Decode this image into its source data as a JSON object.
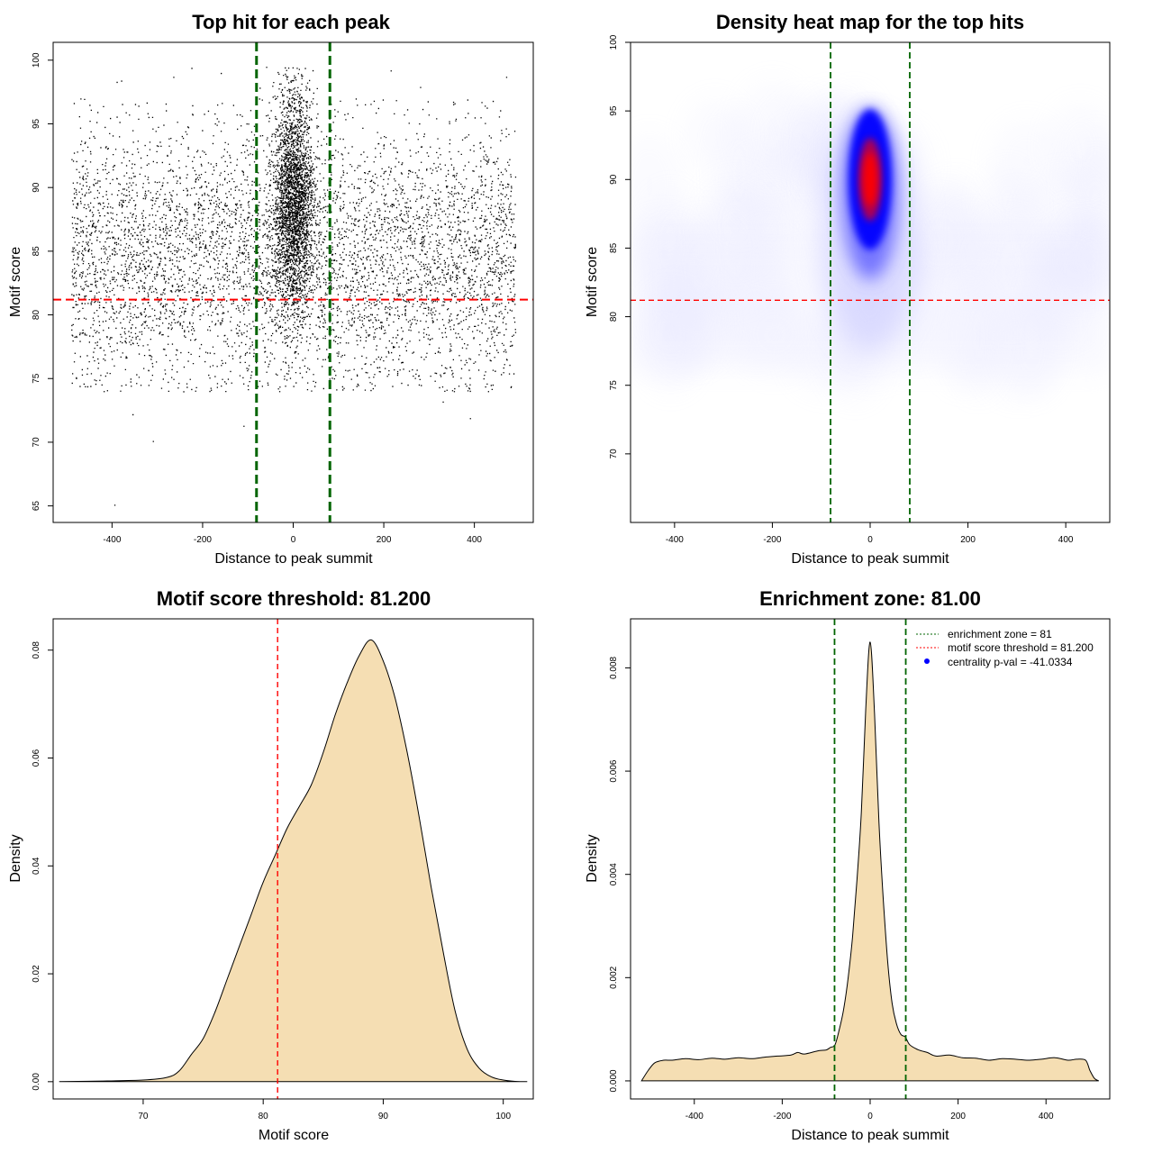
{
  "chart_data": [
    {
      "id": "scatter",
      "type": "scatter",
      "title": "Top hit for each peak",
      "xlabel": "Distance to peak summit",
      "ylabel": "Motif score",
      "xlim": [
        -530,
        530
      ],
      "ylim": [
        63.7,
        101.4
      ],
      "xticks": [
        -400,
        -200,
        0,
        200,
        400
      ],
      "yticks": [
        65,
        70,
        75,
        80,
        85,
        90,
        95,
        100
      ],
      "hline": 81.2,
      "vlines": [
        -81,
        81
      ],
      "point_model": {
        "background": {
          "n": 5600,
          "x_range": [
            -490,
            490
          ],
          "mean": 84.5,
          "sd": 5.0
        },
        "central": {
          "n": 7200,
          "x_mean": 0,
          "x_sd": 22,
          "x_range": [
            -81,
            81
          ],
          "y_mean": 89,
          "y_sd": 4.2
        },
        "outliers": [
          [
            -470,
            97.0
          ],
          [
            -450,
            96.5
          ],
          [
            -420,
            96.4
          ],
          [
            -390,
            98.3
          ],
          [
            -380,
            98.4
          ],
          [
            -225,
            99.4
          ],
          [
            -265,
            98.7
          ],
          [
            -110,
            71.3
          ],
          [
            -310,
            70.1
          ],
          [
            -355,
            72.2
          ],
          [
            -395,
            65.1
          ],
          [
            160,
            99.9
          ],
          [
            215,
            99.2
          ],
          [
            390,
            71.9
          ],
          [
            330,
            73.2
          ],
          [
            470,
            98.7
          ],
          [
            -160,
            99.0
          ],
          [
            280,
            97.9
          ]
        ]
      }
    },
    {
      "id": "heatmap",
      "type": "heatmap",
      "title": "Density heat map for the top hits",
      "xlabel": "Distance to peak summit",
      "ylabel": "Motif score",
      "xlim": [
        -490,
        490
      ],
      "ylim": [
        65,
        100
      ],
      "xticks": [
        -400,
        -200,
        0,
        200,
        400
      ],
      "yticks": [
        70,
        75,
        80,
        85,
        90,
        95,
        100
      ],
      "hline": 81.2,
      "vlines": [
        -81,
        81
      ],
      "colorscale": [
        "#ffffff",
        "#0000ff",
        "#ff0000"
      ]
    },
    {
      "id": "density_score",
      "type": "area",
      "title": "Motif score threshold: 81.200",
      "xlabel": "Motif score",
      "ylabel": "Density",
      "xlim": [
        62.5,
        102.5
      ],
      "ylim": [
        -0.0032,
        0.0858
      ],
      "xticks": [
        70,
        80,
        90,
        100
      ],
      "yticks": [
        0.0,
        0.02,
        0.04,
        0.06,
        0.08
      ],
      "ytick_labels": [
        "0.00",
        "0.02",
        "0.04",
        "0.06",
        "0.08"
      ],
      "vline": 81.2,
      "x": [
        63,
        66,
        70,
        72,
        73,
        74,
        75,
        76,
        77,
        78,
        79,
        80,
        81,
        82,
        83,
        84,
        85,
        86,
        87,
        88,
        89,
        90,
        91,
        92,
        93,
        94,
        95,
        96,
        97,
        98,
        99,
        100,
        101,
        102
      ],
      "y": [
        0,
        0.0001,
        0.0003,
        0.0008,
        0.002,
        0.005,
        0.008,
        0.013,
        0.019,
        0.025,
        0.031,
        0.037,
        0.042,
        0.047,
        0.051,
        0.055,
        0.061,
        0.068,
        0.074,
        0.079,
        0.0819,
        0.078,
        0.071,
        0.061,
        0.049,
        0.036,
        0.024,
        0.013,
        0.006,
        0.0025,
        0.0009,
        0.0003,
        5e-05,
        0
      ],
      "fill": "#f5deb3"
    },
    {
      "id": "density_distance",
      "type": "area",
      "title": "Enrichment zone: 81.00",
      "xlabel": "Distance to peak summit",
      "ylabel": "Density",
      "xlim": [
        -545,
        545
      ],
      "ylim": [
        -0.00035,
        0.00895
      ],
      "xticks": [
        -400,
        -200,
        0,
        200,
        400
      ],
      "yticks": [
        0.0,
        0.002,
        0.004,
        0.006,
        0.008
      ],
      "ytick_labels": [
        "0.000",
        "0.002",
        "0.004",
        "0.006",
        "0.008"
      ],
      "vlines": [
        -81,
        81
      ],
      "x": [
        -520,
        -505,
        -490,
        -470,
        -450,
        -420,
        -390,
        -360,
        -330,
        -300,
        -270,
        -240,
        -210,
        -180,
        -165,
        -150,
        -120,
        -100,
        -90,
        -80,
        -70,
        -60,
        -50,
        -40,
        -30,
        -20,
        -10,
        0,
        10,
        20,
        30,
        40,
        50,
        60,
        70,
        80,
        90,
        110,
        130,
        150,
        180,
        210,
        240,
        270,
        300,
        330,
        360,
        390,
        420,
        450,
        470,
        490,
        500,
        510,
        520
      ],
      "y": [
        0,
        0.0002,
        0.00035,
        0.0004,
        0.0004,
        0.00043,
        0.00041,
        0.00044,
        0.00042,
        0.00045,
        0.00043,
        0.00046,
        0.00048,
        0.0005,
        0.00055,
        0.00052,
        0.00058,
        0.0006,
        0.00065,
        0.0007,
        0.001,
        0.0014,
        0.002,
        0.0028,
        0.0039,
        0.0052,
        0.0072,
        0.0085,
        0.0071,
        0.005,
        0.0035,
        0.0023,
        0.0015,
        0.0011,
        0.0009,
        0.00085,
        0.0007,
        0.0006,
        0.00055,
        0.00048,
        0.0005,
        0.00045,
        0.00044,
        0.0004,
        0.00043,
        0.00042,
        0.0004,
        0.00042,
        0.00045,
        0.0004,
        0.00042,
        0.0004,
        0.0002,
        5e-05,
        0
      ],
      "fill": "#f5deb3",
      "legend": [
        {
          "label": "enrichment zone = 81",
          "style": "dotted-line",
          "color": "#006400"
        },
        {
          "label": "motif score threshold = 81.200",
          "style": "dotted-line",
          "color": "#ff0000"
        },
        {
          "label": "centrality p-val = -41.0334",
          "style": "point",
          "color": "#0000ff"
        }
      ],
      "legend_position": "top-right"
    }
  ],
  "colors": {
    "threshold_red": "#ff0000",
    "zone_green": "#006400",
    "density_fill": "#f5deb3",
    "points": "#000000"
  }
}
